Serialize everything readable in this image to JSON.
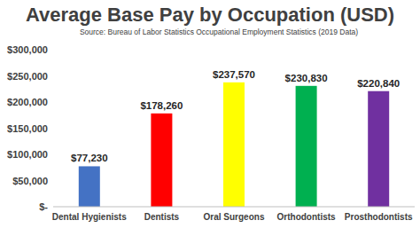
{
  "chart_data": {
    "type": "bar",
    "title": "Average Base Pay by Occupation (USD)",
    "subtitle": "Source: Bureau of Labor Statistics Occupational Employment Statistics (2019 Data)",
    "categories": [
      "Dental Hygienists",
      "Dentists",
      "Oral Surgeons",
      "Orthodontists",
      "Prosthodontists"
    ],
    "values": [
      77230,
      178260,
      237570,
      230830,
      220840
    ],
    "value_labels": [
      "$77,230",
      "$178,260",
      "$237,570",
      "$230,830",
      "$220,840"
    ],
    "colors": [
      "#4472c4",
      "#ff0000",
      "#ffff00",
      "#00b050",
      "#7030a0"
    ],
    "ylim": [
      0,
      300000
    ],
    "yticks": [
      {
        "value": 0,
        "label": "$-"
      },
      {
        "value": 50000,
        "label": "$50,000"
      },
      {
        "value": 100000,
        "label": "$100,000"
      },
      {
        "value": 150000,
        "label": "$150,000"
      },
      {
        "value": 200000,
        "label": "$200,000"
      },
      {
        "value": 250000,
        "label": "$250,000"
      },
      {
        "value": 300000,
        "label": "$300,000"
      }
    ],
    "grid": false,
    "data_labels": true
  }
}
